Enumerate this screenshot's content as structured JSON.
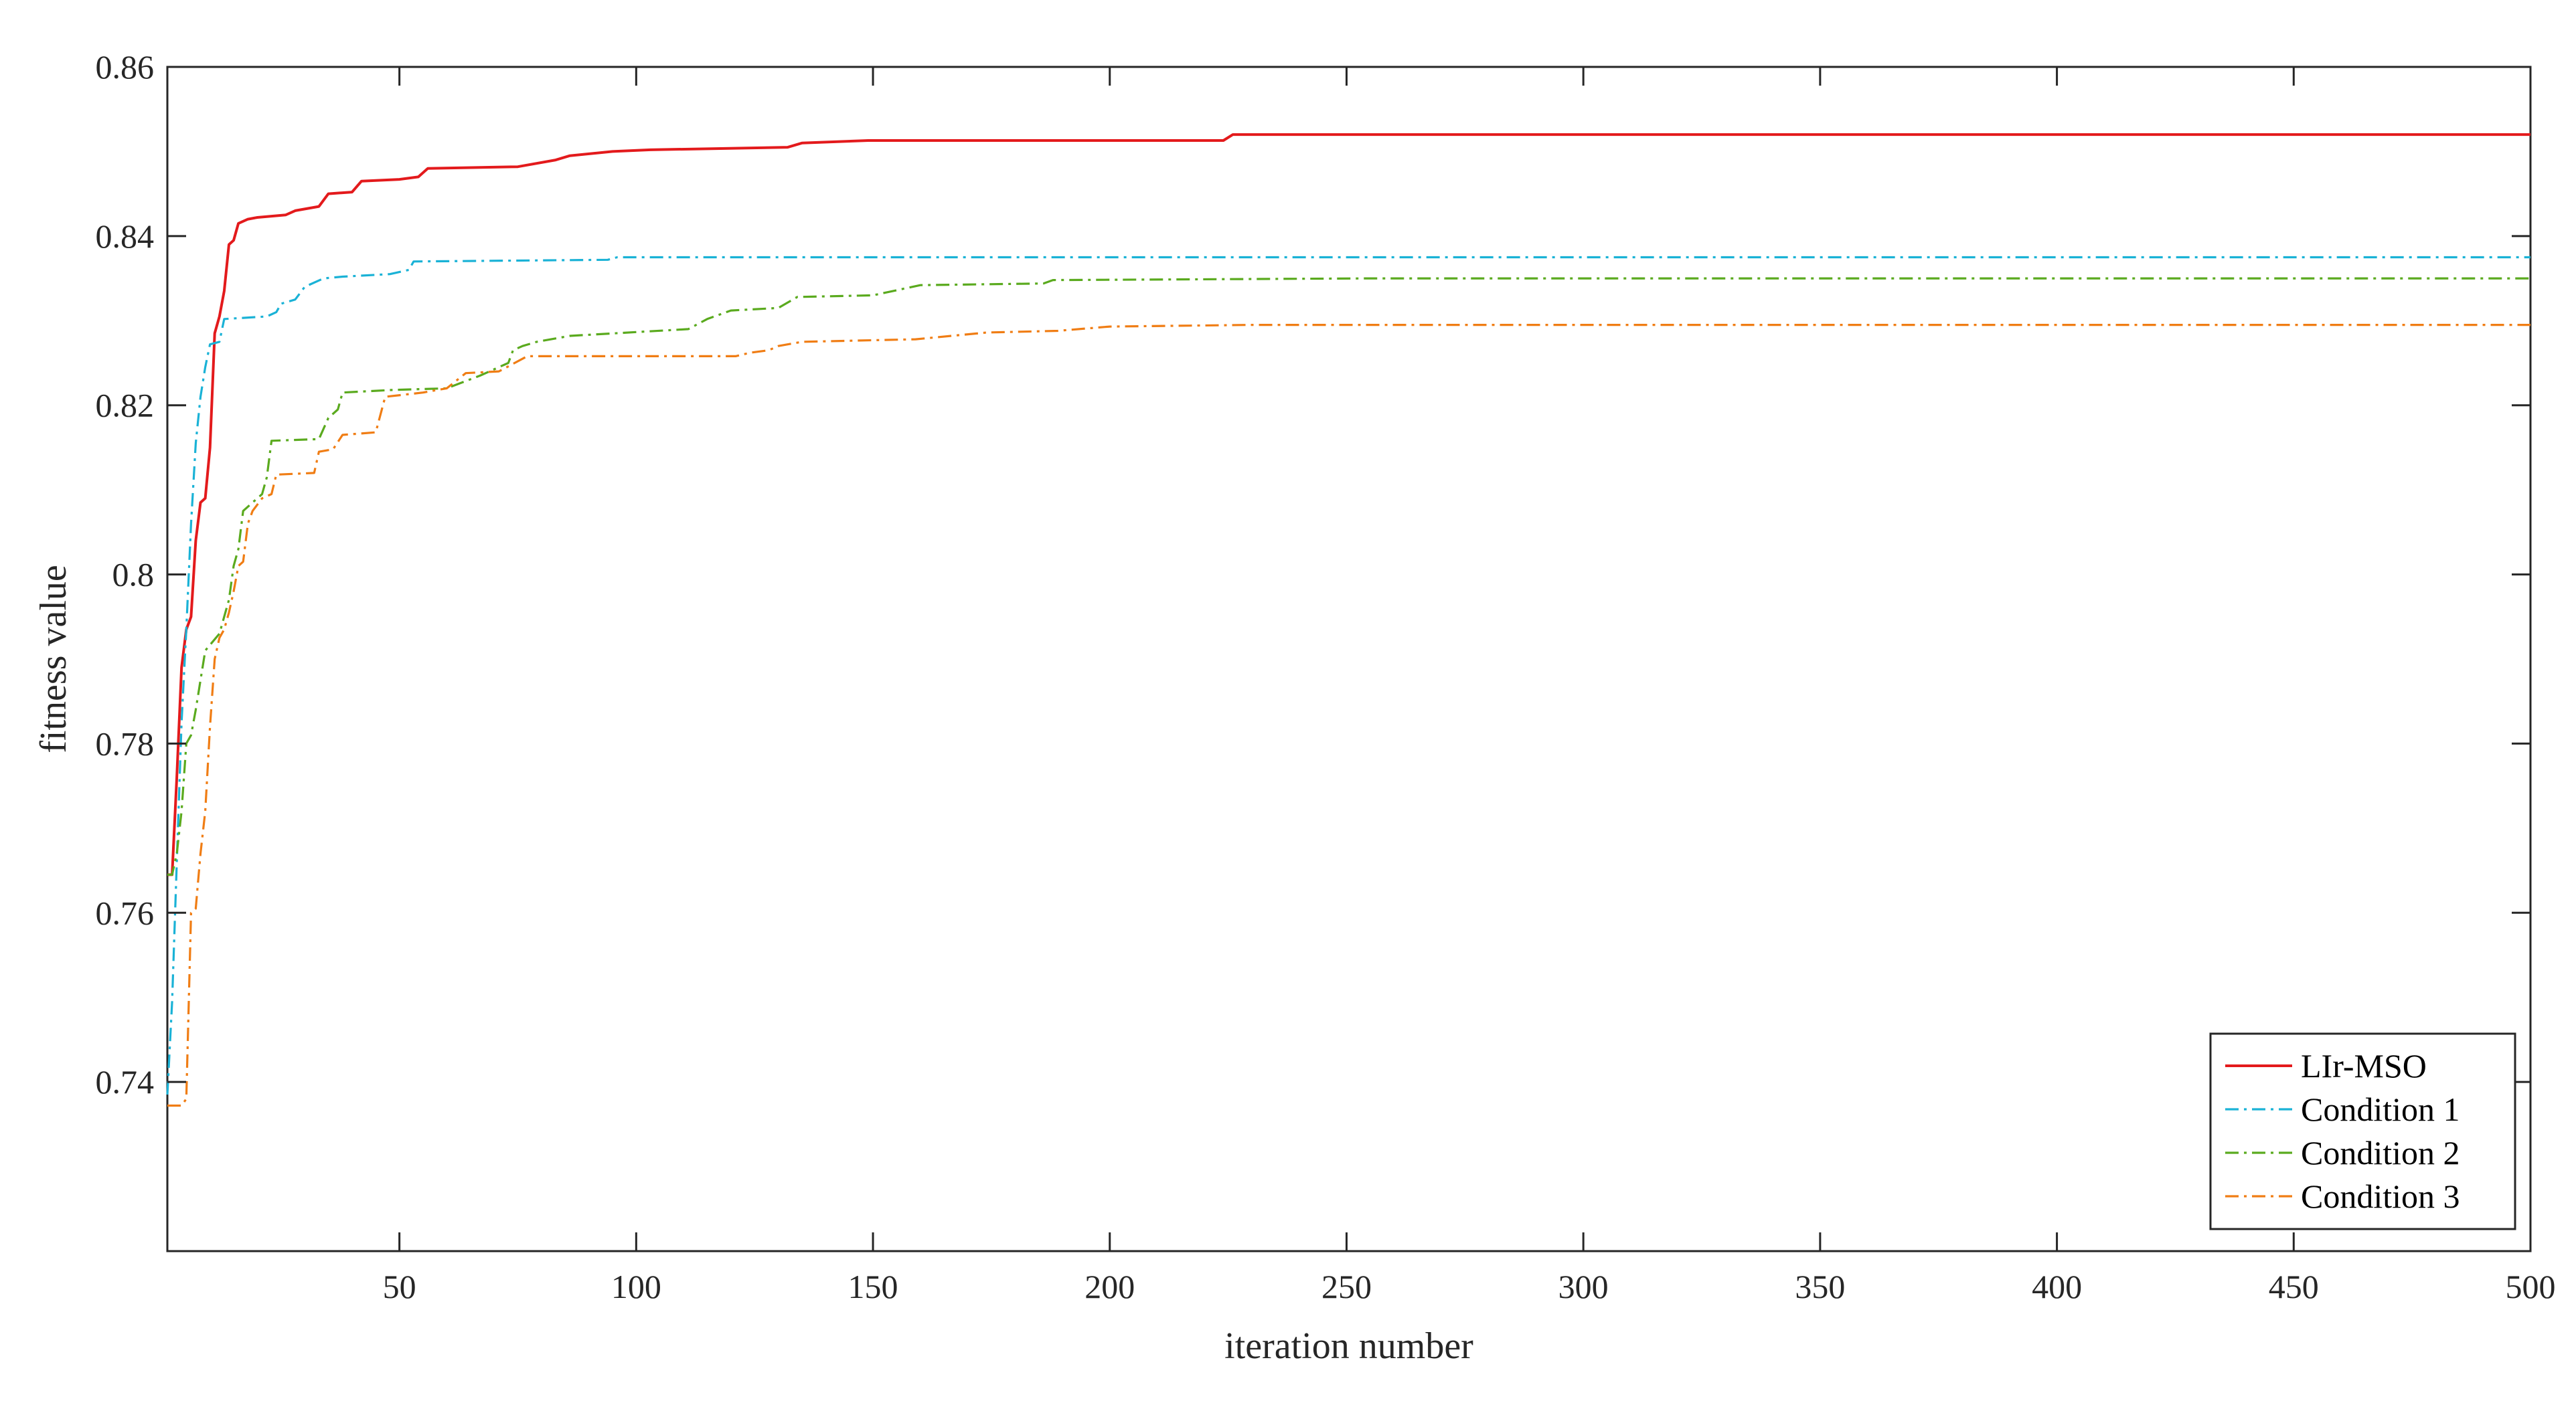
{
  "chart_data": {
    "type": "line",
    "xlabel": "iteration number",
    "ylabel": "fitness value",
    "xlim": [
      1,
      500
    ],
    "ylim": [
      0.72,
      0.86
    ],
    "xticks": [
      50,
      100,
      150,
      200,
      250,
      300,
      350,
      400,
      450,
      500
    ],
    "yticks": [
      0.74,
      0.76,
      0.78,
      0.8,
      0.82,
      0.84,
      0.86
    ],
    "ytick_labels": [
      "0.74",
      "0.76",
      "0.78",
      "0.8",
      "0.82",
      "0.84",
      "0.86"
    ],
    "grid": false,
    "box": true,
    "legend_position": "bottom-right",
    "series": [
      {
        "name": "LIr-MSO",
        "color": "#e31a1c",
        "dash": "solid",
        "points": [
          [
            1,
            0.7645
          ],
          [
            2,
            0.7645
          ],
          [
            3,
            0.776
          ],
          [
            4,
            0.789
          ],
          [
            5,
            0.7935
          ],
          [
            6,
            0.795
          ],
          [
            7,
            0.804
          ],
          [
            8,
            0.8085
          ],
          [
            9,
            0.809
          ],
          [
            10,
            0.815
          ],
          [
            11,
            0.8285
          ],
          [
            12,
            0.8305
          ],
          [
            13,
            0.8335
          ],
          [
            14,
            0.839
          ],
          [
            15,
            0.8395
          ],
          [
            16,
            0.8415
          ],
          [
            18,
            0.842
          ],
          [
            20,
            0.8422
          ],
          [
            26,
            0.8425
          ],
          [
            28,
            0.843
          ],
          [
            33,
            0.8435
          ],
          [
            35,
            0.845
          ],
          [
            40,
            0.8452
          ],
          [
            42,
            0.8465
          ],
          [
            50,
            0.8467
          ],
          [
            54,
            0.847
          ],
          [
            56,
            0.848
          ],
          [
            75,
            0.8482
          ],
          [
            83,
            0.849
          ],
          [
            86,
            0.8495
          ],
          [
            95,
            0.85
          ],
          [
            103,
            0.8502
          ],
          [
            132,
            0.8505
          ],
          [
            135,
            0.851
          ],
          [
            149,
            0.8513
          ],
          [
            224,
            0.8513
          ],
          [
            226,
            0.852
          ],
          [
            500,
            0.852
          ]
        ]
      },
      {
        "name": "Condition 1",
        "color": "#1ab2d6",
        "dash": "20 8 4 8",
        "points": [
          [
            1,
            0.7385
          ],
          [
            2,
            0.7495
          ],
          [
            3,
            0.766
          ],
          [
            4,
            0.7825
          ],
          [
            5,
            0.7935
          ],
          [
            6,
            0.806
          ],
          [
            7,
            0.8155
          ],
          [
            8,
            0.821
          ],
          [
            9,
            0.8245
          ],
          [
            10,
            0.8272
          ],
          [
            12,
            0.8275
          ],
          [
            13,
            0.8302
          ],
          [
            22,
            0.8305
          ],
          [
            24,
            0.831
          ],
          [
            25,
            0.832
          ],
          [
            28,
            0.8325
          ],
          [
            30,
            0.834
          ],
          [
            34,
            0.835
          ],
          [
            38,
            0.8352
          ],
          [
            48,
            0.8355
          ],
          [
            52,
            0.836
          ],
          [
            53,
            0.837
          ],
          [
            94,
            0.8372
          ],
          [
            96,
            0.8375
          ],
          [
            500,
            0.8375
          ]
        ]
      },
      {
        "name": "Condition 2",
        "color": "#5aaa1e",
        "dash": "20 8 4 8",
        "points": [
          [
            1,
            0.7645
          ],
          [
            2,
            0.7645
          ],
          [
            3,
            0.767
          ],
          [
            4,
            0.772
          ],
          [
            5,
            0.78
          ],
          [
            6,
            0.781
          ],
          [
            7,
            0.784
          ],
          [
            9,
            0.791
          ],
          [
            12,
            0.793
          ],
          [
            14,
            0.797
          ],
          [
            15,
            0.801
          ],
          [
            16,
            0.803
          ],
          [
            17,
            0.8075
          ],
          [
            19,
            0.8085
          ],
          [
            21,
            0.8095
          ],
          [
            22,
            0.8115
          ],
          [
            23,
            0.8158
          ],
          [
            33,
            0.816
          ],
          [
            35,
            0.8185
          ],
          [
            37,
            0.8195
          ],
          [
            38,
            0.8215
          ],
          [
            48,
            0.8218
          ],
          [
            60,
            0.822
          ],
          [
            67,
            0.8235
          ],
          [
            73,
            0.825
          ],
          [
            74,
            0.8265
          ],
          [
            76,
            0.827
          ],
          [
            79,
            0.8275
          ],
          [
            86,
            0.8282
          ],
          [
            111,
            0.829
          ],
          [
            115,
            0.8302
          ],
          [
            120,
            0.8312
          ],
          [
            130,
            0.8315
          ],
          [
            134,
            0.8328
          ],
          [
            150,
            0.833
          ],
          [
            160,
            0.8342
          ],
          [
            186,
            0.8344
          ],
          [
            188,
            0.8348
          ],
          [
            255,
            0.835
          ],
          [
            500,
            0.835
          ]
        ]
      },
      {
        "name": "Condition 3",
        "color": "#f07d14",
        "dash": "20 8 4 8",
        "points": [
          [
            1,
            0.7372
          ],
          [
            4,
            0.7372
          ],
          [
            5,
            0.738
          ],
          [
            6,
            0.76
          ],
          [
            7,
            0.7605
          ],
          [
            8,
            0.767
          ],
          [
            9,
            0.772
          ],
          [
            10,
            0.782
          ],
          [
            11,
            0.79
          ],
          [
            12,
            0.7925
          ],
          [
            13,
            0.7935
          ],
          [
            14,
            0.7955
          ],
          [
            15,
            0.798
          ],
          [
            16,
            0.801
          ],
          [
            17,
            0.8015
          ],
          [
            18,
            0.806
          ],
          [
            19,
            0.8075
          ],
          [
            21,
            0.809
          ],
          [
            23,
            0.8095
          ],
          [
            24,
            0.8118
          ],
          [
            32,
            0.812
          ],
          [
            33,
            0.8145
          ],
          [
            36,
            0.8148
          ],
          [
            38,
            0.8165
          ],
          [
            45,
            0.8168
          ],
          [
            47,
            0.821
          ],
          [
            55,
            0.8215
          ],
          [
            60,
            0.822
          ],
          [
            64,
            0.8238
          ],
          [
            71,
            0.824
          ],
          [
            76,
            0.8255
          ],
          [
            77,
            0.8258
          ],
          [
            121,
            0.8258
          ],
          [
            124,
            0.8262
          ],
          [
            128,
            0.8265
          ],
          [
            130,
            0.827
          ],
          [
            135,
            0.8275
          ],
          [
            159,
            0.8278
          ],
          [
            174,
            0.8286
          ],
          [
            189,
            0.8288
          ],
          [
            200,
            0.8293
          ],
          [
            230,
            0.8295
          ],
          [
            500,
            0.8295
          ]
        ]
      }
    ]
  }
}
